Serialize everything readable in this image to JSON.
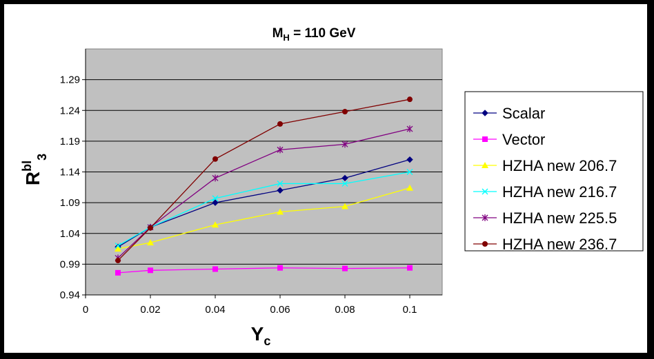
{
  "chart_data": {
    "type": "line",
    "title_main": "M",
    "title_sub": "H",
    "title_rest": " = 110 GeV",
    "xlabel_main": "Y",
    "xlabel_sub": "c",
    "ylabel_main": "R",
    "ylabel_sup": "bl",
    "ylabel_sub": "3",
    "x": [
      0.01,
      0.02,
      0.04,
      0.06,
      0.08,
      0.1
    ],
    "xlim": [
      0,
      0.11
    ],
    "ylim": [
      0.94,
      1.34
    ],
    "x_ticks": [
      "0",
      "0.02",
      "0.04",
      "0.06",
      "0.08",
      "0.1"
    ],
    "x_tick_values": [
      0,
      0.02,
      0.04,
      0.06,
      0.08,
      0.1
    ],
    "y_ticks": [
      "0.94",
      "0.99",
      "1.04",
      "1.09",
      "1.14",
      "1.19",
      "1.24",
      "1.29"
    ],
    "y_tick_values": [
      0.94,
      0.99,
      1.04,
      1.09,
      1.14,
      1.19,
      1.24,
      1.29
    ],
    "grid": true,
    "legend_position": "right",
    "series": [
      {
        "name": "Scalar",
        "color": "#000080",
        "marker": "diamond",
        "values": [
          1.018,
          1.05,
          1.09,
          1.11,
          1.13,
          1.16
        ]
      },
      {
        "name": "Vector",
        "color": "#ff00ff",
        "marker": "square",
        "values": [
          0.976,
          0.98,
          0.982,
          0.984,
          0.983,
          0.984
        ]
      },
      {
        "name": "HZHA new 206.7",
        "color": "#ffff00",
        "marker": "triangle",
        "values": [
          1.015,
          1.025,
          1.054,
          1.075,
          1.084,
          1.114
        ]
      },
      {
        "name": "HZHA new 216.7",
        "color": "#00ffff",
        "marker": "x",
        "values": [
          1.02,
          1.05,
          1.097,
          1.121,
          1.121,
          1.14
        ]
      },
      {
        "name": "HZHA new 225.5",
        "color": "#800080",
        "marker": "star",
        "values": [
          1.0,
          1.05,
          1.13,
          1.176,
          1.185,
          1.21
        ]
      },
      {
        "name": "HZHA new 236.7",
        "color": "#800000",
        "marker": "circle",
        "values": [
          0.996,
          1.049,
          1.161,
          1.218,
          1.238,
          1.258
        ]
      }
    ]
  }
}
